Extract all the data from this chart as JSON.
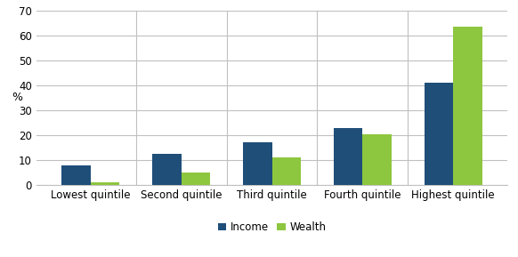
{
  "categories": [
    "Lowest quintile",
    "Second quintile",
    "Third quintile",
    "Fourth quintile",
    "Highest quintile"
  ],
  "income": [
    8,
    12.5,
    17,
    23,
    41
  ],
  "wealth": [
    1,
    5,
    11,
    20.5,
    63.5
  ],
  "income_color": "#1F4E79",
  "wealth_color": "#8DC63F",
  "ylabel": "%",
  "ylim": [
    0,
    70
  ],
  "yticks": [
    0,
    10,
    20,
    30,
    40,
    50,
    60,
    70
  ],
  "legend_income": "Income",
  "legend_wealth": "Wealth",
  "bar_width": 0.32,
  "background_color": "#ffffff",
  "grid_color": "#c0c0c0",
  "tick_fontsize": 8.5,
  "ylabel_fontsize": 9
}
